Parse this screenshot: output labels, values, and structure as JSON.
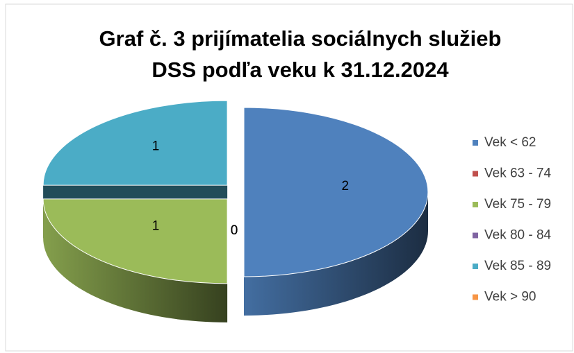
{
  "chart_data": {
    "type": "pie3d",
    "title": [
      "Graf č. 3 prijímatelia sociálnych služieb",
      "DSS podľa veku k 31.12.2024"
    ],
    "series": [
      {
        "name": "Vek < 62",
        "color": "#4f81bd",
        "values": [
          2
        ]
      },
      {
        "name": "Vek 63 - 74",
        "color": "#c0504d",
        "values": [
          0
        ]
      },
      {
        "name": "Vek 75 - 79",
        "color": "#9bbb59",
        "values": [
          1
        ]
      },
      {
        "name": "Vek 80 - 84",
        "color": "#8064a2",
        "values": [
          0
        ]
      },
      {
        "name": "Vek 85 - 89",
        "color": "#4bacc6",
        "values": [
          1
        ]
      },
      {
        "name": "Vek > 90",
        "color": "#f79646",
        "values": [
          0
        ]
      }
    ],
    "legend": "right"
  }
}
